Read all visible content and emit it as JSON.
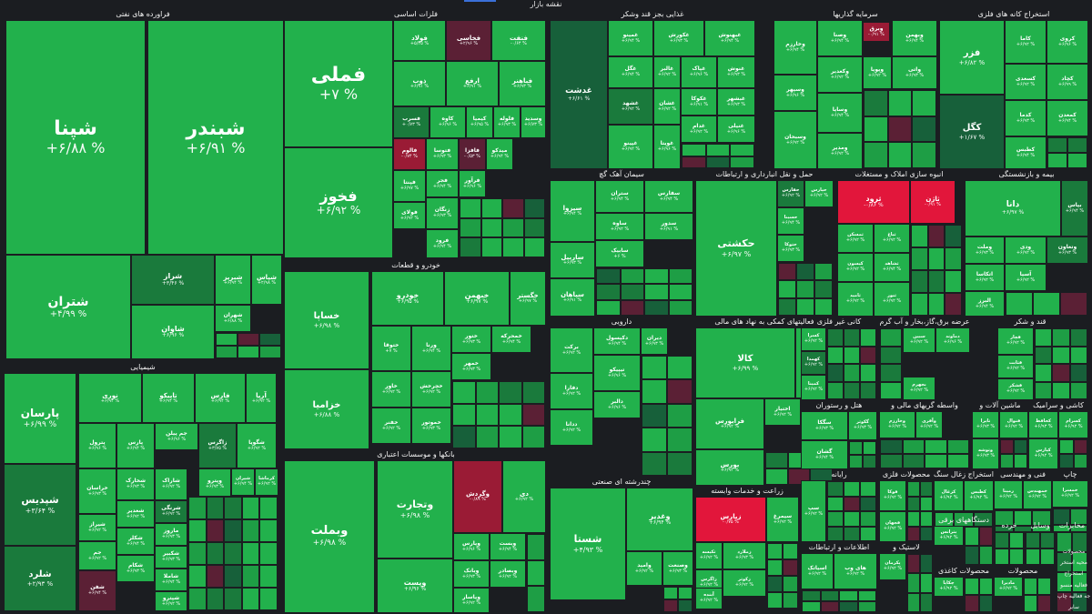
{
  "map_title": "نقشه بازار",
  "colors": {
    "up_strong": "#22b14c",
    "up_mid": "#1e9e45",
    "up_low": "#1a7a3c",
    "flat": "#17603a",
    "down_strong": "#e2163b",
    "down_mid": "#9a1b35",
    "down_low": "#5b2035",
    "background": "#1b1d21"
  },
  "sectors": [
    {
      "id": "s1",
      "title": "فراورده های نفتی",
      "tiles": [
        {
          "n": "شپنا",
          "p": "+۶/۸۸ %"
        },
        {
          "n": "شبندر",
          "p": "+۶/۹۱ %"
        },
        {
          "n": "شتران",
          "p": "+۴/۹۹ %"
        },
        {
          "n": "شراز",
          "p": "+۳/۴۶ %"
        },
        {
          "n": "شبریز",
          "p": "+۶/۹۴ %"
        },
        {
          "n": "شپاس",
          "p": "+۲/۹۸ %"
        },
        {
          "n": "شاوان",
          "p": "+۶/۹۶ %"
        },
        {
          "n": "شهران",
          "p": "+۶/۸۸ %"
        }
      ]
    },
    {
      "id": "s2",
      "title": "فلزات اساسی",
      "tiles": [
        {
          "n": "فملی",
          "p": "+۷ %"
        },
        {
          "n": "فولاد",
          "p": "+۵/۳۵ %"
        },
        {
          "n": "فخاسی",
          "p": "+۲/۹۶ %"
        },
        {
          "n": "فنفت",
          "p": "-۰/۶۴ %"
        },
        {
          "n": "فخوز",
          "p": "+۶/۹۲ %"
        },
        {
          "n": "ذوب",
          "p": "+۶/۹۱ %"
        },
        {
          "n": "ارفع",
          "p": "+۶/۹۱ %"
        },
        {
          "n": "فباهنر",
          "p": "+۶/۹۳ %"
        },
        {
          "n": "فسرب",
          "p": "+۰/۷۳ %"
        },
        {
          "n": "کاوه",
          "p": "+۶/۹۶ %"
        },
        {
          "n": "کیمیا",
          "p": "+۶/۹۵ %"
        },
        {
          "n": "فلوله",
          "p": "+۶/۹۳ %"
        },
        {
          "n": "وسدید",
          "p": "+۶/۷۳ %"
        },
        {
          "n": "فالوم",
          "p": "-۰/۷۴ %"
        },
        {
          "n": "فتوسا",
          "p": "+۶/۹۳ %"
        },
        {
          "n": "فافزا",
          "p": "-۰/۵۳ %"
        },
        {
          "n": "میدکو",
          "p": "+۶/۹۴ %"
        },
        {
          "n": "فجر",
          "p": "+۶/۹۴ %"
        },
        {
          "n": "فرآور",
          "p": "+۶/۹۶ %"
        },
        {
          "n": "فپنتا",
          "p": "+۶/۹۷ %"
        },
        {
          "n": "زنگان",
          "p": "+۶/۹۳ %"
        },
        {
          "n": "فولای",
          "p": "+۶/۹۲ %"
        },
        {
          "n": "فرود",
          "p": "+۶/۹۴ %"
        }
      ]
    },
    {
      "id": "s3",
      "title": "غذایی بجز قند وشکر",
      "tiles": [
        {
          "n": "غدشت",
          "p": "+۶/۶۱ %"
        },
        {
          "n": "غمینو",
          "p": "+۶/۹۴ %"
        },
        {
          "n": "غکورش",
          "p": "+۶/۹۳ %"
        },
        {
          "n": "غگل",
          "p": "+۶/۹۴ %"
        },
        {
          "n": "غالبر",
          "p": "+۶/۹۲ %"
        },
        {
          "n": "غشهد",
          "p": "+۶/۹۲ %"
        },
        {
          "n": "غپینو",
          "p": "+۶/۹۲ %"
        },
        {
          "n": "غشان",
          "p": "+۶/۹۲ %"
        },
        {
          "n": "غویتا",
          "p": "+۶/۹۶ %"
        },
        {
          "n": "غبهنوش",
          "p": "+۶/۹۴ %"
        },
        {
          "n": "غپاک",
          "p": "+۶/۹۶ %"
        },
        {
          "n": "غنوش",
          "p": "+۶/۹۳ %"
        },
        {
          "n": "غکوکا",
          "p": "+۶/۹۱ %"
        },
        {
          "n": "غبشهر",
          "p": "+۶/۹۳ %"
        },
        {
          "n": "غدام",
          "p": "+۶/۹۲ %"
        },
        {
          "n": "غنیلی",
          "p": "+۶/۹۶ %"
        }
      ]
    },
    {
      "id": "s4",
      "title": "سرمایه گذاریها",
      "tiles": [
        {
          "n": "وبرق",
          "p": "-۰/۹۱ %"
        },
        {
          "n": "وبهمن",
          "p": "+۶/۹۴ %"
        },
        {
          "n": "وصنا",
          "p": "+۶/۹۴ %"
        },
        {
          "n": "وخارزم",
          "p": "+۶/۹۴ %"
        },
        {
          "n": "وکغدیر",
          "p": "+۶/۹۲ %"
        },
        {
          "n": "وپویا",
          "p": "+۶/۹۲ %"
        },
        {
          "n": "واتی",
          "p": "+۶/۹۳ %"
        },
        {
          "n": "وسپهر",
          "p": "+۶/۹۶ %"
        },
        {
          "n": "وسبحان",
          "p": "+۶/۹۲ %"
        },
        {
          "n": "وساپا",
          "p": "+۶/۹۴ %"
        },
        {
          "n": "ومدیر",
          "p": "+۶/۹۲ %"
        }
      ]
    },
    {
      "id": "s5",
      "title": "استخراج کانه های فلزی",
      "tiles": [
        {
          "n": "فزر",
          "p": "+۶/۸۲ %"
        },
        {
          "n": "کگل",
          "p": "+۱/۶۷ %"
        },
        {
          "n": "کاما",
          "p": "+۶/۹۲ %"
        },
        {
          "n": "کروی",
          "p": "+۶/۹۶ %"
        },
        {
          "n": "کچاد",
          "p": "+۶/۹۹ %"
        },
        {
          "n": "کدما",
          "p": "+۶/۹۳ %"
        },
        {
          "n": "کسعدی",
          "p": "+۶/۹۲ %"
        },
        {
          "n": "کمعدن",
          "p": "+۶/۹۴ %"
        },
        {
          "n": "کطبس",
          "p": "+۶/۹۴ %"
        }
      ]
    },
    {
      "id": "s6",
      "title": "شیمیایی",
      "tiles": [
        {
          "n": "پارسان",
          "p": "+۶/۹۹ %"
        },
        {
          "n": "شپدیس",
          "p": "+۳/۶۴ %"
        },
        {
          "n": "شلرد",
          "p": "+۲/۹۳ %"
        },
        {
          "n": "نوری",
          "p": "+۶/۹۴ %"
        },
        {
          "n": "تاپیکو",
          "p": "+۶/۹۴ %"
        },
        {
          "n": "فارس",
          "p": "+۶/۹۴ %"
        },
        {
          "n": "آریا",
          "p": "+۶/۹۲ %"
        },
        {
          "n": "پترول",
          "p": "+۶/۹۶ %"
        },
        {
          "n": "پارس",
          "p": "+۶/۹۴ %"
        },
        {
          "n": "جم پیلن",
          "p": "+۶/۹۶ %"
        },
        {
          "n": "زاگرس",
          "p": "+۳/۷۵ %"
        },
        {
          "n": "شگویا",
          "p": "+۶/۹۲ %"
        },
        {
          "n": "خراسان",
          "p": "+۶/۹۳ %"
        },
        {
          "n": "شخارک",
          "p": "+۶/۹۳ %"
        },
        {
          "n": "شغدیر",
          "p": "+۶/۹۲ %"
        },
        {
          "n": "شکلر",
          "p": "+۶/۹۴ %"
        },
        {
          "n": "شیراز",
          "p": "+۶/۹۲ %"
        },
        {
          "n": "شکام",
          "p": "+۶/۹۳ %"
        },
        {
          "n": "جم",
          "p": "+۶/۹۲ %"
        },
        {
          "n": "شفن",
          "p": "+۶/۹۴ %"
        },
        {
          "n": "شرنگی",
          "p": "+۶/۹۲ %"
        },
        {
          "n": "ماروز",
          "p": "+۶/۹۳ %"
        },
        {
          "n": "شکبیر",
          "p": "+۶/۹۳ %"
        },
        {
          "n": "شاملا",
          "p": "+۶/۹۴ %"
        },
        {
          "n": "شپترو",
          "p": "+۶/۹۲ %"
        },
        {
          "n": "کرماشا",
          "p": "+۶/۹۲ %"
        },
        {
          "n": "شاراک",
          "p": "+۶/۹۲ %"
        },
        {
          "n": "وپترو",
          "p": "+۶/۹۳ %"
        },
        {
          "n": "شیران",
          "p": "+۶/۹۴ %"
        }
      ]
    },
    {
      "id": "s7",
      "title": "خودرو و قطعات",
      "tiles": [
        {
          "n": "خساپا",
          "p": "+۶/۹۸ %"
        },
        {
          "n": "خزامیا",
          "p": "+۶/۸۸ %"
        },
        {
          "n": "خودرو",
          "p": "+۶/۹۵ %"
        },
        {
          "n": "خبهمن",
          "p": "+۶/۹۷ %"
        },
        {
          "n": "خگستر",
          "p": "+۶/۹۷ %"
        },
        {
          "n": "ختوقا",
          "p": "+۷ %"
        },
        {
          "n": "ورنا",
          "p": "+۶/۹۴ %"
        },
        {
          "n": "ختور",
          "p": "+۶/۹۳ %"
        },
        {
          "n": "خمحرکه",
          "p": "+۶/۹۴ %"
        },
        {
          "n": "خاور",
          "p": "+۶/۹۲ %"
        },
        {
          "n": "خچرخش",
          "p": "+۶/۹۲ %"
        },
        {
          "n": "خمهر",
          "p": "+۶/۹۳ %"
        },
        {
          "n": "خفنر",
          "p": "+۶/۹۲ %"
        },
        {
          "n": "خموتور",
          "p": "+۶/۹۳ %"
        }
      ]
    },
    {
      "id": "s8",
      "title": "بانکها و موسسات اعتباری",
      "tiles": [
        {
          "n": "وبملت",
          "p": "+۶/۹۸ %"
        },
        {
          "n": "وتجارت",
          "p": "+۶/۹۸ %"
        },
        {
          "n": "وگردش",
          "p": "-۰/۸۹ %"
        },
        {
          "n": "دی",
          "p": "+۶/۹۲ %"
        },
        {
          "n": "وپارس",
          "p": "+۶/۹۶ %"
        },
        {
          "n": "وبست",
          "p": "+۶/۹۴ %"
        },
        {
          "n": "وبانک",
          "p": "+۶/۹۳ %"
        },
        {
          "n": "وبصادر",
          "p": "+۶/۹۲ %"
        },
        {
          "n": "وپاسار",
          "p": "+۶/۹۲ %"
        },
        {
          "n": "وپست",
          "p": "+۶/۹۶ %"
        }
      ]
    },
    {
      "id": "s9",
      "title": "سیمان آهک گچ",
      "tiles": [
        {
          "n": "سیزوا",
          "p": "+۶/۹۴ %"
        },
        {
          "n": "ستران",
          "p": "+۶/۹۴ %"
        },
        {
          "n": "سفارس",
          "p": "+۶/۹۴ %"
        },
        {
          "n": "ساوه",
          "p": "+۶/۹۲ %"
        },
        {
          "n": "سدور",
          "p": "+۶/۹۱ %"
        },
        {
          "n": "ساربیل",
          "p": "+۶/۹۳ %"
        },
        {
          "n": "سپاهان",
          "p": "+۶/۹۱ %"
        },
        {
          "n": "سابیک",
          "p": "+۶ %"
        }
      ]
    },
    {
      "id": "s10",
      "title": "حمل و نقل انبارداری و ارتباطات",
      "tiles": [
        {
          "n": "حکشتی",
          "p": "+۶/۹۷ %"
        },
        {
          "n": "حفارس",
          "p": "+۶/۹۲ %"
        },
        {
          "n": "حپارس",
          "p": "+۶/۹۲ %"
        },
        {
          "n": "حسینا",
          "p": "+۶/۹۴ %"
        },
        {
          "n": "حتوکا",
          "p": "+۶/۹۳ %"
        }
      ]
    },
    {
      "id": "s11",
      "title": "انبوه سازی املاک و مستغلات",
      "tiles": [
        {
          "n": "ثرود",
          "p": "-۰/۸۶ %"
        },
        {
          "n": "ثاژن",
          "p": "-۰/۹۱ %"
        },
        {
          "n": "ثمسکن",
          "p": "+۶/۹۲ %"
        },
        {
          "n": "ثباغ",
          "p": "+۶/۹۲ %"
        },
        {
          "n": "کیسون",
          "p": "+۶/۹۲ %"
        },
        {
          "n": "ثشاهد",
          "p": "+۶/۹۴ %"
        },
        {
          "n": "ثامید",
          "p": "+۶/۹۲ %"
        },
        {
          "n": "ثنور",
          "p": "+۶/۹۲ %"
        }
      ]
    },
    {
      "id": "s12",
      "title": "بیمه و بازنشستگی",
      "tiles": [
        {
          "n": "دانا",
          "p": "+۶/۹۷ %"
        },
        {
          "n": "بپاس",
          "p": "+۶/۹۴ %"
        },
        {
          "n": "وملت",
          "p": "+۶/۹۳ %"
        },
        {
          "n": "ودی",
          "p": "+۶/۹۲ %"
        },
        {
          "n": "وتعاون",
          "p": "+۶/۹۳ %"
        },
        {
          "n": "اتکاسا",
          "p": "+۶/۹۲ %"
        },
        {
          "n": "آسیا",
          "p": "+۶/۹۲ %"
        },
        {
          "n": "البرز",
          "p": "+۶/۹۴ %"
        }
      ]
    },
    {
      "id": "s13",
      "title": "دارویی",
      "tiles": [
        {
          "n": "برکت",
          "p": "+۶/۹۲ %"
        },
        {
          "n": "دکپسول",
          "p": "+۶/۹۴ %"
        },
        {
          "n": "دیران",
          "p": "+۶/۹۳ %"
        },
        {
          "n": "دفارا",
          "p": "+۶/۹۲ %"
        },
        {
          "n": "ددانا",
          "p": "+۶/۹۲ %"
        },
        {
          "n": "تیپیکو",
          "p": "+۶/۹۶ %"
        },
        {
          "n": "دالبر",
          "p": "+۶/۹۶ %"
        }
      ]
    },
    {
      "id": "s14",
      "title": "فعالیتهای کمکی به نهاد های مالی",
      "tiles": [
        {
          "n": "کالا",
          "p": "+۶/۹۹ %"
        },
        {
          "n": "لبوتس",
          "p": "+۶/۹۲ %"
        },
        {
          "n": "فرابورس",
          "p": "+۶/۹۲ %"
        },
        {
          "n": "اختیار",
          "p": "+۶/۹۲ %"
        },
        {
          "n": "بورس",
          "p": "+۶/۹۲ %"
        }
      ]
    },
    {
      "id": "s15",
      "title": "کانی غیر فلزی",
      "tiles": [
        {
          "n": "کسرا",
          "p": "+۶/۹۲ %"
        },
        {
          "n": "کهمدا",
          "p": "+۶/۹۲ %"
        },
        {
          "n": "کمینا",
          "p": "+۶/۹۲ %"
        },
        {
          "n": "کساوه",
          "p": "+۶/۹۳ %"
        }
      ]
    },
    {
      "id": "s16",
      "title": "عرضه برق،گاز،بخار و آب گرم",
      "tiles": [
        {
          "n": "سبین",
          "p": "+۶/۹۲ %"
        },
        {
          "n": "دماوند",
          "p": "+۶/۹۶ %"
        },
        {
          "n": "بجهرم",
          "p": "+۶/۹۲ %"
        }
      ]
    },
    {
      "id": "s17",
      "title": "قند و شکر",
      "tiles": [
        {
          "n": "قچار",
          "p": "+۶/۹۲ %"
        },
        {
          "n": "قثابت",
          "p": "+۶/۹۲ %"
        },
        {
          "n": "قشکر",
          "p": "+۶/۹۲ %"
        }
      ]
    },
    {
      "id": "s18",
      "title": "هتل و رستوران",
      "tiles": [
        {
          "n": "سگکا",
          "p": "+۶/۹۳ %"
        },
        {
          "n": "گکوثر",
          "p": "+۶/۹۳ %"
        },
        {
          "n": "گشان",
          "p": "+۶/۹۴ %"
        }
      ]
    },
    {
      "id": "s19",
      "title": "واسطه گریهای مالی و",
      "tiles": [
        {
          "n": "وخارزم",
          "p": "+۶/۹۲ %"
        },
        {
          "n": "وآفری",
          "p": "+۶/۹۲ %"
        }
      ]
    },
    {
      "id": "s20",
      "title": "ماشین آلات و",
      "tiles": [
        {
          "n": "تاپرا",
          "p": "+۶/۹۳ %"
        },
        {
          "n": "وتوشه",
          "p": "+۶/۹۳ %"
        },
        {
          "n": "فنوال",
          "p": "+۶/۹۲ %"
        }
      ]
    },
    {
      "id": "s21",
      "title": "کاشی و سرامیک",
      "tiles": [
        {
          "n": "کحافظ",
          "p": "+۶/۹۳ %"
        },
        {
          "n": "کسرام",
          "p": "+۶/۹۲ %"
        },
        {
          "n": "کپارس",
          "p": "+۶/۹۲ %"
        }
      ]
    },
    {
      "id": "s22",
      "title": "چندرشته ای صنعتی",
      "tiles": [
        {
          "n": "شستا",
          "p": "+۴/۹۳ %"
        },
        {
          "n": "وغدیر",
          "p": "+۶/۹۴ %"
        },
        {
          "n": "وامید",
          "p": "+۶/۹۲ %"
        },
        {
          "n": "وصنعت",
          "p": "+۶/۹۳ %"
        }
      ]
    },
    {
      "id": "s23",
      "title": "زراعت و خدمات وابسته",
      "tiles": [
        {
          "n": "زپارس",
          "p": "-۰/۷۵ %"
        },
        {
          "n": "سیمرغ",
          "p": "+۶/۹۲ %"
        },
        {
          "n": "زملارد",
          "p": "+۶/۹۳ %"
        },
        {
          "n": "زاگرس",
          "p": "+۶/۹۲ %"
        },
        {
          "n": "زکوثر",
          "p": "+۶/۹۲ %"
        },
        {
          "n": "آبنده",
          "p": "+۶/۹۲ %"
        },
        {
          "n": "تکیسه",
          "p": "+۶/۹۲ %"
        }
      ]
    },
    {
      "id": "s24",
      "title": "رایانه",
      "tiles": [
        {
          "n": "سپ",
          "p": "+۶/۹۲ %"
        }
      ]
    },
    {
      "id": "s25",
      "title": "اطلاعات و ارتباطات",
      "tiles": [
        {
          "n": "اسیاتک",
          "p": "+۶/۹۲ %"
        },
        {
          "n": "های وب",
          "p": "+۶/۹۲ %"
        }
      ]
    },
    {
      "id": "s26",
      "title": "محصولات فلزی",
      "tiles": [
        {
          "n": "فوکا",
          "p": "+۶/۹۲ %"
        },
        {
          "n": "فجهان",
          "p": "+۶/۹۲ %"
        }
      ]
    },
    {
      "id": "s27",
      "title": "استخراج زغال سنگ",
      "tiles": [
        {
          "n": "کزغال",
          "p": "+۶/۹۲ %"
        },
        {
          "n": "کطبس",
          "p": "+۶/۹۲ %"
        }
      ]
    },
    {
      "id": "s28",
      "title": "فنی و مهندسی",
      "tiles": [
        {
          "n": "رمپنا",
          "p": "+۶/۹۲ %"
        },
        {
          "n": "خمهندس",
          "p": "+۶/۹۲ %"
        }
      ]
    },
    {
      "id": "s29",
      "title": "چاپ",
      "tiles": [
        {
          "n": "خمسرا",
          "p": "+۶/۹۲ %"
        }
      ]
    },
    {
      "id": "s30",
      "title": "لاستیک و",
      "tiles": [
        {
          "n": "پکرمان",
          "p": "+۶/۹۲ %"
        }
      ]
    },
    {
      "id": "s31",
      "title": "دستگاههای برقی",
      "tiles": [
        {
          "n": "بترانس",
          "p": "+۶/۹۲ %"
        }
      ]
    },
    {
      "id": "s32",
      "title": "محصولات کاغذی",
      "tiles": [
        {
          "n": "چکاپا",
          "p": "+۶/۹۲ %"
        }
      ]
    },
    {
      "id": "s33",
      "title": "محصولات",
      "tiles": [
        {
          "n": "مادیرا",
          "p": "+۶/۹۲ %"
        }
      ]
    },
    {
      "id": "s34",
      "title": "خرده",
      "tiles": []
    },
    {
      "id": "s35",
      "title": "وسایل",
      "tiles": []
    },
    {
      "id": "s36",
      "title": "مخابرات",
      "tiles": []
    }
  ],
  "side_labels": [
    "محصولات",
    "محیه استخر",
    "استخراج",
    "فعالیه منسو",
    "جه فعالیه چاپ",
    "سایر"
  ]
}
